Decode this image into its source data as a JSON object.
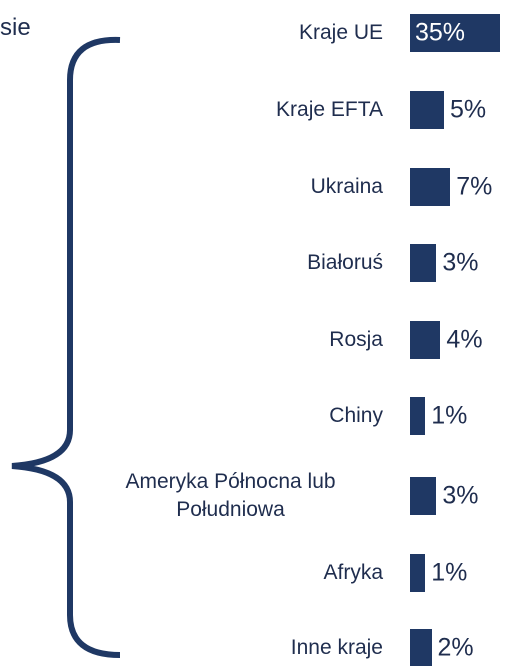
{
  "fragment": "sie",
  "chart_data": {
    "type": "bar",
    "orientation": "horizontal",
    "color": "#1f3864",
    "categories": [
      "Kraje UE",
      "Kraje EFTA",
      "Ukraina",
      "Białoruś",
      "Rosja",
      "Chiny",
      "Ameryka Północna lub Południowa",
      "Afryka",
      "Inne kraje"
    ],
    "values": [
      35,
      5,
      7,
      3,
      4,
      1,
      3,
      1,
      2
    ],
    "value_labels": [
      "35%",
      "5%",
      "7%",
      "3%",
      "4%",
      "1%",
      "3%",
      "1%",
      "2%"
    ]
  }
}
